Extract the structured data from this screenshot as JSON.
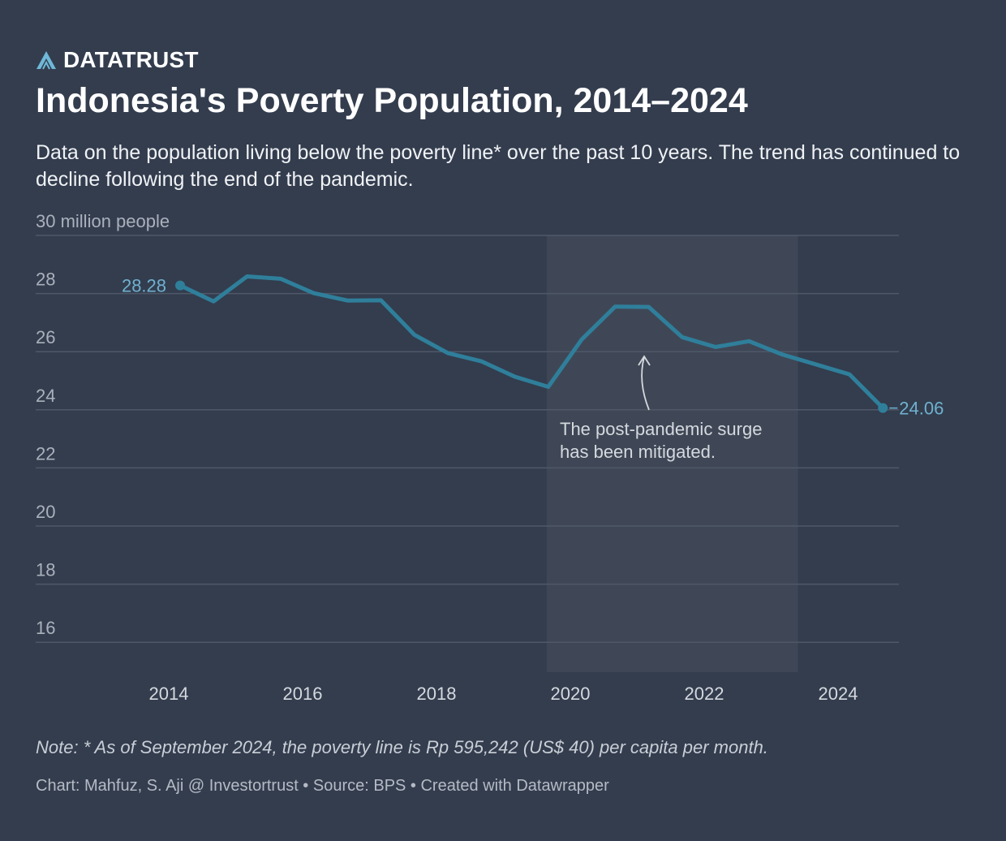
{
  "brand": {
    "name": "DATATRUST",
    "accent": "#6fb8d8"
  },
  "header": {
    "title": "Indonesia's Poverty Population, 2014–2024",
    "subtitle": "Data on the population living below the poverty line* over the past 10 years. The trend has continued to decline following the end of the pandemic."
  },
  "chart_data": {
    "type": "line",
    "ylabel": "30 million people",
    "ylim": [
      15,
      30
    ],
    "yticks": [
      16,
      18,
      20,
      22,
      24,
      26,
      28
    ],
    "xticks": [
      "2014",
      "2016",
      "2018",
      "2020",
      "2022",
      "2024"
    ],
    "xlim": [
      2013.5,
      2025.4
    ],
    "grid": true,
    "line_color": "#2f7f9b",
    "series": [
      {
        "x": [
          2014.17,
          2014.67,
          2015.17,
          2015.67,
          2016.17,
          2016.67,
          2017.17,
          2017.67,
          2018.17,
          2018.67,
          2019.17,
          2019.67,
          2020.17,
          2020.67,
          2021.17,
          2021.67,
          2022.17,
          2022.67,
          2023.17,
          2024.17,
          2024.67
        ],
        "y": [
          28.28,
          27.73,
          28.59,
          28.51,
          28.01,
          27.76,
          27.77,
          26.58,
          25.95,
          25.67,
          25.14,
          24.79,
          26.42,
          27.55,
          27.54,
          26.5,
          26.16,
          26.36,
          25.9,
          25.22,
          24.06
        ]
      }
    ],
    "data_labels": {
      "first": "28.28",
      "last": "24.06"
    },
    "highlight_range": [
      2019.65,
      2023.4
    ],
    "annotation": {
      "text_line1": "The post-pandemic surge",
      "text_line2": "has been mitigated.",
      "target": [
        2021.0,
        26.0
      ]
    }
  },
  "footer": {
    "note": "Note: * As of September 2024, the poverty line is Rp 595,242 (US$ 40) per capita per month.",
    "credit": "Chart: Mahfuz, S. Aji @ Investortrust • Source: BPS • Created with Datawrapper"
  }
}
